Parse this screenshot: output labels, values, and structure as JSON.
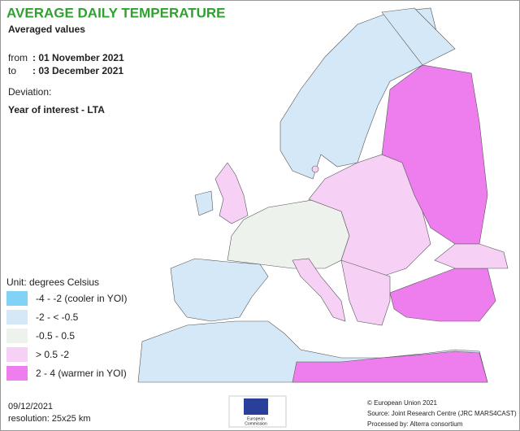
{
  "header": {
    "title": "AVERAGE DAILY TEMPERATURE",
    "subtitle": "Averaged values",
    "from_label": "from",
    "from_value": ": 01 November 2021",
    "to_label": "to",
    "to_value": ": 03 December 2021",
    "deviation_label": "Deviation:",
    "deviation_value": "Year of interest - LTA"
  },
  "legend": {
    "unit": "Unit: degrees Celsius",
    "items": [
      {
        "label": "-4 - -2 (cooler in YOI)",
        "color": "#80d2f6"
      },
      {
        "label": "-2 - < -0.5",
        "color": "#d5e8f7"
      },
      {
        "label": "-0.5 - 0.5",
        "color": "#eef2ec"
      },
      {
        "label": "> 0.5 -2",
        "color": "#f7d0f5"
      },
      {
        "label": "2 - 4 (warmer in YOI)",
        "color": "#ee7eee"
      }
    ]
  },
  "footer": {
    "date": "09/12/2021",
    "resolution": "resolution: 25x25 km",
    "logo_lines": [
      "European",
      "Commission"
    ],
    "copyright": "© European Union 2021",
    "source": "Source: Joint Research Centre (JRC MARS4CAST)",
    "processed": "Processed by: Alterra consortium"
  }
}
